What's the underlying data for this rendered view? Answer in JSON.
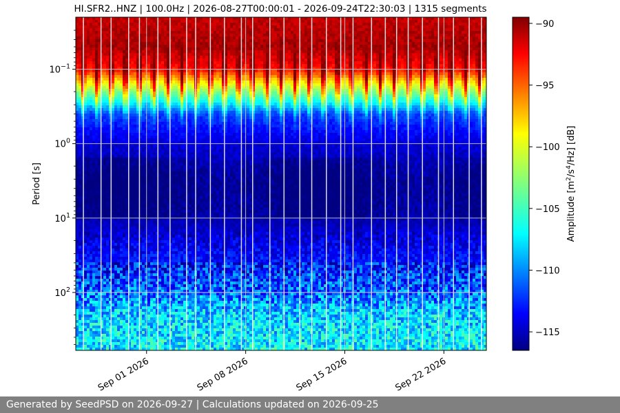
{
  "chart_data": {
    "type": "heatmap",
    "title": "HI.SFR2..HNZ | 100.0Hz | 2026-08-27T00:00:01 - 2026-09-24T22:30:03 | 1315 segments",
    "ylabel": "Period [s]",
    "y_scale": "log",
    "y_inverted": true,
    "ylim": [
      0.02,
      600
    ],
    "y_ticks": [
      {
        "value": 0.1,
        "base": "10",
        "exp": "−1"
      },
      {
        "value": 1,
        "base": "10",
        "exp": "0"
      },
      {
        "value": 10,
        "base": "10",
        "exp": "1"
      },
      {
        "value": 100,
        "base": "10",
        "exp": "2"
      }
    ],
    "x_type": "date",
    "xlim": [
      "2026-08-27",
      "2026-09-25"
    ],
    "x_ticks": [
      {
        "date": "2026-09-01",
        "label": "Sep 01 2026"
      },
      {
        "date": "2026-09-08",
        "label": "Sep 08 2026"
      },
      {
        "date": "2026-09-15",
        "label": "Sep 15 2026"
      },
      {
        "date": "2026-09-22",
        "label": "Sep 22 2026"
      }
    ],
    "grid": true,
    "colormap": "jet",
    "colorbar": {
      "label_text": "Amplitude [m",
      "label_sup1": "2",
      "label_mid": "/s",
      "label_sup2": "4",
      "label_end": "/Hz] [dB]",
      "range": [
        -116.5,
        -89.5
      ],
      "ticks": [
        "−115",
        "−110",
        "−105",
        "−100",
        "−95",
        "−90"
      ],
      "tick_values": [
        -115,
        -110,
        -105,
        -100,
        -95,
        -90
      ]
    },
    "period_profile": [
      {
        "period": 0.02,
        "db": -91
      },
      {
        "period": 0.05,
        "db": -90.5
      },
      {
        "period": 0.1,
        "db": -93
      },
      {
        "period": 0.2,
        "db": -103
      },
      {
        "period": 0.4,
        "db": -112
      },
      {
        "period": 1,
        "db": -114.5
      },
      {
        "period": 3,
        "db": -115.8
      },
      {
        "period": 10,
        "db": -115.5
      },
      {
        "period": 40,
        "db": -113
      },
      {
        "period": 100,
        "db": -111
      },
      {
        "period": 200,
        "db": -108
      },
      {
        "period": 600,
        "db": -107
      }
    ],
    "diurnal_cycle_days": 1
  },
  "footer": {
    "text": "Generated by SeedPSD on 2026-09-27 | Calculations updated on 2026-09-25"
  }
}
